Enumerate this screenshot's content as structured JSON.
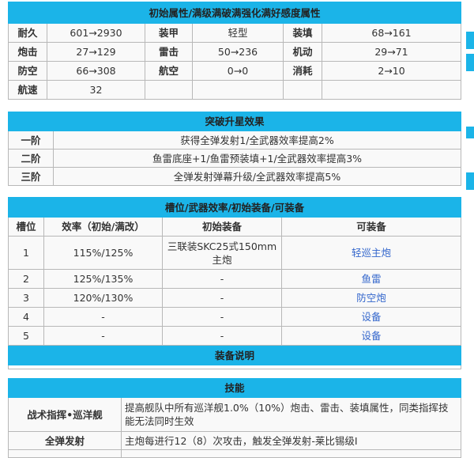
{
  "stats": {
    "title": "初始属性/满级满破满强化满好感度属性",
    "rows": [
      [
        "耐久",
        "601→2930",
        "装甲",
        "轻型",
        "装填",
        "68→161"
      ],
      [
        "炮击",
        "27→129",
        "雷击",
        "50→236",
        "机动",
        "29→71"
      ],
      [
        "防空",
        "66→308",
        "航空",
        "0→0",
        "消耗",
        "2→10"
      ],
      [
        "航速",
        "32",
        "",
        "",
        "",
        ""
      ]
    ]
  },
  "breakthrough": {
    "title": "突破升星效果",
    "rows": [
      [
        "一阶",
        "获得全弹发射1/全武器效率提高2%"
      ],
      [
        "二阶",
        "鱼雷底座+1/鱼雷预装填+1/全武器效率提高3%"
      ],
      [
        "三阶",
        "全弹发射弹幕升级/全武器效率提高5%"
      ]
    ]
  },
  "slots": {
    "title": "槽位/武器效率/初始装备/可装备",
    "headers": [
      "槽位",
      "效率（初始/满改）",
      "初始装备",
      "可装备"
    ],
    "rows": [
      [
        "1",
        "115%/125%",
        "三联装SKC25式150mm主炮",
        "轻巡主炮"
      ],
      [
        "2",
        "125%/135%",
        "-",
        "鱼雷"
      ],
      [
        "3",
        "120%/130%",
        "-",
        "防空炮"
      ],
      [
        "4",
        "-",
        "-",
        "设备"
      ],
      [
        "5",
        "-",
        "-",
        "设备"
      ]
    ],
    "equip_note_title": "装备说明"
  },
  "skills": {
    "title": "技能",
    "rows": [
      [
        "战术指挥•巡洋舰",
        "提高舰队中所有巡洋舰1.0%（10%）炮击、雷击、装填属性，同类指挥技能无法同时生效"
      ],
      [
        "全弹发射",
        "主炮每进行12（8）次攻击，触发全弹发射-莱比锡级I"
      ]
    ]
  },
  "colors": {
    "header": "#1bb4e8",
    "link": "#3366cc"
  }
}
